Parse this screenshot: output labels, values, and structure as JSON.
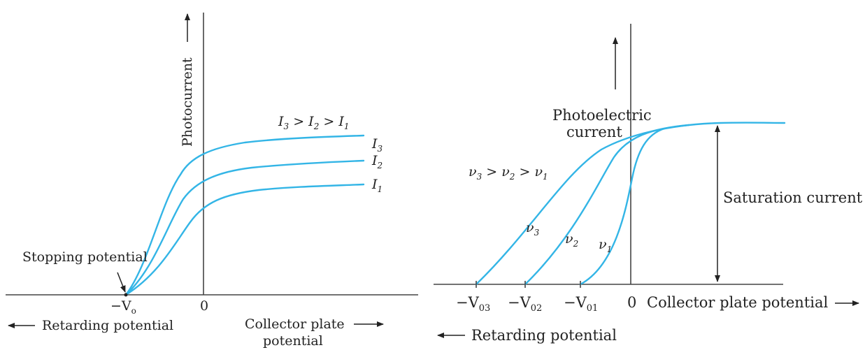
{
  "left_figure": {
    "y_axis_label": "Photocurrent",
    "relation_parts": {
      "i3": "I",
      "i3_sub": "3",
      "gt1": ">",
      "i2": "I",
      "i2_sub": "2",
      "gt2": ">",
      "i1": "I",
      "i1_sub": "1"
    },
    "curve_labels": [
      {
        "base": "I",
        "sub": "3"
      },
      {
        "base": "I",
        "sub": "2"
      },
      {
        "base": "I",
        "sub": "1"
      }
    ],
    "stopping_potential_label": "Stopping potential",
    "neg_v0_label_base": "−V",
    "neg_v0_label_sub": "o",
    "zero_label": "0",
    "retarding_label": "Retarding potential",
    "collector_label_line1": "Collector plate",
    "collector_label_line2": "potential",
    "curve_color": "#33b5e6"
  },
  "right_figure": {
    "y_axis_label_line1": "Photoelectric",
    "y_axis_label_line2": "current",
    "relation_parts": {
      "v3": "ν",
      "v3_sub": "3",
      "gt1": ">",
      "v2": "ν",
      "v2_sub": "2",
      "gt2": ">",
      "v1": "ν",
      "v1_sub": "1"
    },
    "curve_labels": [
      {
        "base": "ν",
        "sub": "3"
      },
      {
        "base": "ν",
        "sub": "2"
      },
      {
        "base": "ν",
        "sub": "1"
      }
    ],
    "saturation_label": "Saturation current",
    "tick_labels": [
      {
        "base": "−V",
        "sub": "03"
      },
      {
        "base": "−V",
        "sub": "02"
      },
      {
        "base": "−V",
        "sub": "01"
      }
    ],
    "zero_label": "0",
    "collector_label": "Collector plate potential",
    "retarding_label": "Retarding potential",
    "curve_color": "#33b5e6"
  }
}
